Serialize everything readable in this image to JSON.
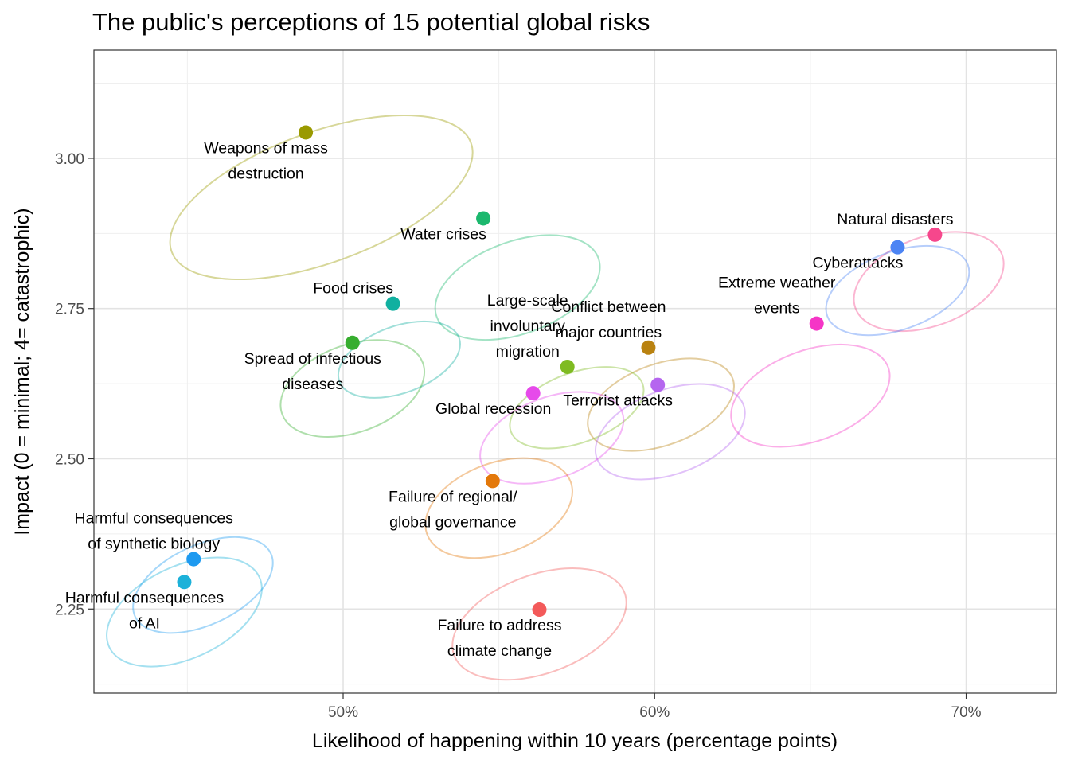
{
  "chart_data": {
    "type": "scatter",
    "title": "The public's perceptions of 15 potential global risks",
    "xlabel": "Likelihood of happening within 10 years (percentage points)",
    "ylabel": "Impact (0 = minimal; 4= catastrophic)",
    "xlim": [
      42.0,
      72.9
    ],
    "ylim": [
      2.11,
      3.18
    ],
    "x_ticks": [
      50,
      60,
      70
    ],
    "x_tick_labels": [
      "50%",
      "60%",
      "70%"
    ],
    "y_ticks": [
      2.25,
      2.5,
      2.75,
      3.0
    ],
    "y_tick_labels": [
      "2.25",
      "2.50",
      "2.75",
      "3.00"
    ],
    "grid": true,
    "legend": "none",
    "points": [
      {
        "label_lines": [
          "Weapons of mass",
          "destruction"
        ],
        "x": 48.8,
        "y": 3.043,
        "color": "#9a9a00",
        "label_pos": "below",
        "ellipse": {
          "cx": 49.3,
          "cy": 2.935,
          "rx": 200,
          "ry": 82,
          "angle": -20
        }
      },
      {
        "label_lines": [
          "Water crises"
        ],
        "x": 54.5,
        "y": 2.9,
        "color": "#1cb86e",
        "label_pos": "below",
        "ellipse": {
          "cx": 55.6,
          "cy": 2.785,
          "rx": 108,
          "ry": 58,
          "angle": -20
        }
      },
      {
        "label_lines": [
          "Natural disasters"
        ],
        "x": 69.0,
        "y": 2.873,
        "color": "#f6478c",
        "label_pos": "above",
        "ellipse": {
          "cx": 68.8,
          "cy": 2.795,
          "rx": 98,
          "ry": 56,
          "angle": -20
        }
      },
      {
        "label_lines": [
          "Cyberattacks"
        ],
        "x": 67.8,
        "y": 2.852,
        "color": "#4c84f4",
        "label_pos": "below",
        "ellipse": {
          "cx": 67.8,
          "cy": 2.78,
          "rx": 94,
          "ry": 49,
          "angle": -20
        }
      },
      {
        "label_lines": [
          "Food crises"
        ],
        "x": 51.6,
        "y": 2.758,
        "color": "#11b0a0",
        "label_pos": "above",
        "ellipse": {
          "cx": 51.8,
          "cy": 2.665,
          "rx": 80,
          "ry": 42,
          "angle": -20
        }
      },
      {
        "label_lines": [
          "Extreme weather",
          "events"
        ],
        "x": 65.2,
        "y": 2.725,
        "color": "#f535c6",
        "label_pos": "above",
        "ellipse": {
          "cx": 65.0,
          "cy": 2.605,
          "rx": 104,
          "ry": 57,
          "angle": -20
        }
      },
      {
        "label_lines": [
          "Spread of infectious",
          "diseases"
        ],
        "x": 50.3,
        "y": 2.693,
        "color": "#37ae2f",
        "label_pos": "below",
        "ellipse": {
          "cx": 50.3,
          "cy": 2.617,
          "rx": 94,
          "ry": 55,
          "angle": -20
        }
      },
      {
        "label_lines": [
          "Conflict between",
          "major countries"
        ],
        "x": 59.8,
        "y": 2.685,
        "color": "#b98210",
        "label_pos": "above",
        "ellipse": {
          "cx": 60.2,
          "cy": 2.59,
          "rx": 96,
          "ry": 51,
          "angle": -20
        }
      },
      {
        "label_lines": [
          "Large-scale",
          "involuntary",
          "migration"
        ],
        "x": 57.2,
        "y": 2.653,
        "color": "#7fbb22",
        "label_pos": "above",
        "ellipse": {
          "cx": 57.5,
          "cy": 2.585,
          "rx": 88,
          "ry": 44,
          "angle": -20
        }
      },
      {
        "label_lines": [
          "Terrorist attacks"
        ],
        "x": 60.1,
        "y": 2.623,
        "color": "#b565ef",
        "label_pos": "below",
        "ellipse": {
          "cx": 60.5,
          "cy": 2.545,
          "rx": 98,
          "ry": 53,
          "angle": -20
        }
      },
      {
        "label_lines": [
          "Global recession"
        ],
        "x": 56.1,
        "y": 2.609,
        "color": "#e64aea",
        "label_pos": "below",
        "ellipse": {
          "cx": 56.7,
          "cy": 2.535,
          "rx": 94,
          "ry": 51,
          "angle": -20
        }
      },
      {
        "label_lines": [
          "Failure of regional/",
          "global governance"
        ],
        "x": 54.8,
        "y": 2.463,
        "color": "#e3780a",
        "label_pos": "below",
        "ellipse": {
          "cx": 55.0,
          "cy": 2.418,
          "rx": 96,
          "ry": 57,
          "angle": -20
        }
      },
      {
        "label_lines": [
          "Harmful consequences",
          "of synthetic biology"
        ],
        "x": 45.2,
        "y": 2.333,
        "color": "#1e9af0",
        "label_pos": "above",
        "ellipse": {
          "cx": 45.5,
          "cy": 2.29,
          "rx": 94,
          "ry": 50,
          "angle": -25
        }
      },
      {
        "label_lines": [
          "Harmful consequences",
          "of AI"
        ],
        "x": 44.9,
        "y": 2.295,
        "color": "#1cb1d9",
        "label_pos": "below",
        "ellipse": {
          "cx": 44.9,
          "cy": 2.245,
          "rx": 104,
          "ry": 58,
          "angle": -25
        }
      },
      {
        "label_lines": [
          "Failure to address",
          "climate change"
        ],
        "x": 56.3,
        "y": 2.249,
        "color": "#f35a5a",
        "label_pos": "below",
        "ellipse": {
          "cx": 56.3,
          "cy": 2.225,
          "rx": 114,
          "ry": 62,
          "angle": -20
        }
      }
    ]
  }
}
